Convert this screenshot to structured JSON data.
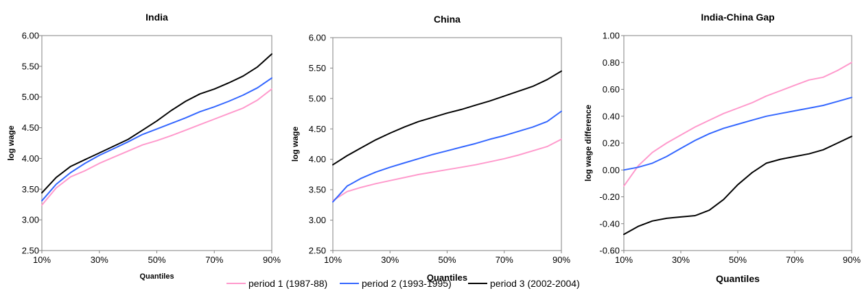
{
  "chart_data": [
    {
      "type": "line",
      "title": "India",
      "xlabel": "Quantiles",
      "ylabel": "log wage",
      "xlim": [
        10,
        90
      ],
      "ylim": [
        2.5,
        6.0
      ],
      "grid": false,
      "x_ticks": [
        "10%",
        "30%",
        "50%",
        "70%",
        "90%"
      ],
      "y_ticks": [
        "2.50",
        "3.00",
        "3.50",
        "4.00",
        "4.50",
        "5.00",
        "5.50",
        "6.00"
      ],
      "x": [
        10,
        15,
        20,
        25,
        30,
        35,
        40,
        45,
        50,
        55,
        60,
        65,
        70,
        75,
        80,
        85,
        90
      ],
      "series": [
        {
          "name": "period 1 (1987-88)",
          "color": "#ff99cc",
          "values": [
            3.24,
            3.52,
            3.7,
            3.8,
            3.92,
            4.02,
            4.12,
            4.22,
            4.29,
            4.37,
            4.46,
            4.55,
            4.64,
            4.73,
            4.82,
            4.95,
            5.13
          ]
        },
        {
          "name": "period 2 (1993-1995)",
          "color": "#3366ff",
          "values": [
            3.31,
            3.58,
            3.77,
            3.92,
            4.05,
            4.16,
            4.27,
            4.39,
            4.48,
            4.57,
            4.66,
            4.76,
            4.84,
            4.93,
            5.03,
            5.15,
            5.31
          ]
        },
        {
          "name": "period 3 (2002-2004)",
          "color": "#000000",
          "values": [
            3.44,
            3.69,
            3.87,
            3.98,
            4.09,
            4.2,
            4.31,
            4.46,
            4.61,
            4.78,
            4.93,
            5.05,
            5.13,
            5.23,
            5.34,
            5.49,
            5.7
          ]
        }
      ]
    },
    {
      "type": "line",
      "title": "China",
      "xlabel": "Quantiles",
      "ylabel": "log wage",
      "xlim": [
        10,
        90
      ],
      "ylim": [
        2.5,
        6.0
      ],
      "grid": false,
      "x_ticks": [
        "10%",
        "30%",
        "50%",
        "70%",
        "90%"
      ],
      "y_ticks": [
        "2.50",
        "3.00",
        "3.50",
        "4.00",
        "4.50",
        "5.00",
        "5.50",
        "6.00"
      ],
      "x": [
        10,
        15,
        20,
        25,
        30,
        35,
        40,
        45,
        50,
        55,
        60,
        65,
        70,
        75,
        80,
        85,
        90
      ],
      "series": [
        {
          "name": "period 1 (1987-88)",
          "color": "#ff99cc",
          "values": [
            3.32,
            3.47,
            3.54,
            3.6,
            3.65,
            3.7,
            3.75,
            3.79,
            3.83,
            3.87,
            3.91,
            3.96,
            4.01,
            4.07,
            4.14,
            4.21,
            4.33
          ]
        },
        {
          "name": "period 2 (1993-1995)",
          "color": "#3366ff",
          "values": [
            3.3,
            3.56,
            3.69,
            3.79,
            3.87,
            3.94,
            4.01,
            4.08,
            4.14,
            4.2,
            4.26,
            4.33,
            4.39,
            4.46,
            4.53,
            4.62,
            4.79
          ]
        },
        {
          "name": "period 3 (2002-2004)",
          "color": "#000000",
          "values": [
            3.91,
            4.06,
            4.19,
            4.32,
            4.43,
            4.53,
            4.62,
            4.69,
            4.76,
            4.82,
            4.89,
            4.96,
            5.04,
            5.12,
            5.2,
            5.31,
            5.45
          ]
        }
      ]
    },
    {
      "type": "line",
      "title": "India-China Gap",
      "xlabel": "Quantiles",
      "ylabel": "log wage difference",
      "xlim": [
        10,
        90
      ],
      "ylim": [
        -0.6,
        1.0
      ],
      "grid": false,
      "x_ticks": [
        "10%",
        "30%",
        "50%",
        "70%",
        "90%"
      ],
      "y_ticks": [
        "-0.60",
        "-0.40",
        "-0.20",
        "0.00",
        "0.20",
        "0.40",
        "0.60",
        "0.80",
        "1.00"
      ],
      "x": [
        10,
        15,
        20,
        25,
        30,
        35,
        40,
        45,
        50,
        55,
        60,
        65,
        70,
        75,
        80,
        85,
        90
      ],
      "series": [
        {
          "name": "period 1 (1987-88)",
          "color": "#ff99cc",
          "values": [
            -0.12,
            0.03,
            0.13,
            0.2,
            0.26,
            0.32,
            0.37,
            0.42,
            0.46,
            0.5,
            0.55,
            0.59,
            0.63,
            0.67,
            0.69,
            0.74,
            0.8
          ]
        },
        {
          "name": "period 2 (1993-1995)",
          "color": "#3366ff",
          "values": [
            0.0,
            0.02,
            0.05,
            0.1,
            0.16,
            0.22,
            0.27,
            0.31,
            0.34,
            0.37,
            0.4,
            0.42,
            0.44,
            0.46,
            0.48,
            0.51,
            0.54
          ]
        },
        {
          "name": "period 3 (2002-2004)",
          "color": "#000000",
          "values": [
            -0.48,
            -0.42,
            -0.38,
            -0.36,
            -0.35,
            -0.34,
            -0.3,
            -0.22,
            -0.11,
            -0.02,
            0.05,
            0.08,
            0.1,
            0.12,
            0.15,
            0.2,
            0.25
          ]
        }
      ]
    }
  ],
  "legend": {
    "placement": "bottom-center",
    "items": [
      {
        "label": "period 1 (1987-88)",
        "color": "#ff99cc"
      },
      {
        "label": "period 2 (1993-1995)",
        "color": "#3366ff"
      },
      {
        "label": "period 3 (2002-2004)",
        "color": "#000000"
      }
    ]
  }
}
